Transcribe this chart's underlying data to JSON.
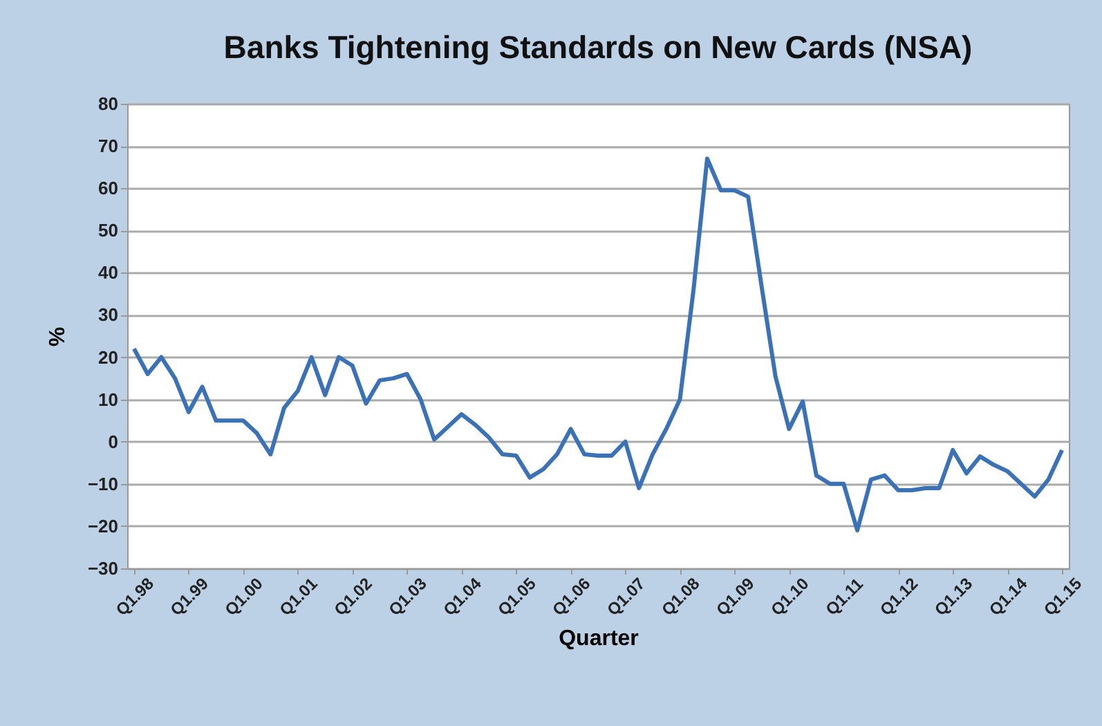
{
  "chart_data": {
    "type": "line",
    "title": "Banks Tightening Standards on New Cards (NSA)",
    "xlabel": "Quarter",
    "ylabel": "%",
    "categories": [
      "Q1.98",
      null,
      null,
      null,
      "Q1.99",
      null,
      null,
      null,
      "Q1.00",
      null,
      null,
      null,
      "Q1.01",
      null,
      null,
      null,
      "Q1.02",
      null,
      null,
      null,
      "Q1.03",
      null,
      null,
      null,
      "Q1.04",
      null,
      null,
      null,
      "Q1.05",
      null,
      null,
      null,
      "Q1.06",
      null,
      null,
      null,
      "Q1.07",
      null,
      null,
      null,
      "Q1.08",
      null,
      null,
      null,
      "Q1.09",
      null,
      null,
      null,
      "Q1.10",
      null,
      null,
      null,
      "Q1.11",
      null,
      null,
      null,
      "Q1.12",
      null,
      null,
      null,
      "Q1.13",
      null,
      null,
      null,
      "Q1.14",
      null,
      null,
      null,
      "Q1.15"
    ],
    "series": [
      {
        "color": "#3a72b5",
        "values": [
          22,
          16,
          20,
          15,
          7,
          13,
          5,
          5,
          5,
          2,
          -3,
          8,
          12,
          20,
          11,
          20,
          18,
          9,
          14.5,
          15,
          16,
          10,
          0.5,
          3.5,
          6.5,
          4,
          1,
          -3,
          -3.3,
          -8.5,
          -6.5,
          -3,
          3,
          -3,
          -3.3,
          -3.3,
          0,
          -11,
          -3,
          3,
          10,
          36,
          67,
          59.5,
          59.5,
          58,
          36.5,
          15.5,
          3,
          9.5,
          -8,
          -10,
          -10,
          -21,
          -9,
          -8,
          -11.5,
          -11.5,
          -11,
          -11,
          -2,
          -7.5,
          -3.5,
          -5.5,
          -7,
          -10,
          -13,
          -9,
          -2
        ]
      }
    ],
    "ylim": [
      -30,
      80
    ],
    "yticks": [
      -30,
      -20,
      -10,
      0,
      10,
      20,
      30,
      40,
      50,
      60,
      70,
      80
    ],
    "grid": "y",
    "marker": "none",
    "line_style": "solid"
  }
}
